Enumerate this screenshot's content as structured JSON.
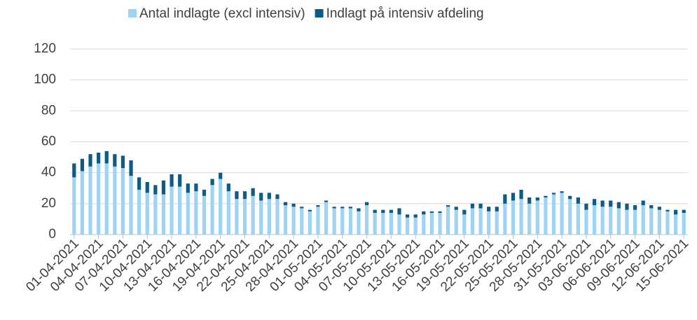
{
  "chart_data": {
    "type": "stacked-bar",
    "categories": [
      "01-04-2021",
      null,
      null,
      "04-04-2021",
      null,
      null,
      "07-04-2021",
      null,
      null,
      "10-04-2021",
      null,
      null,
      "13-04-2021",
      null,
      null,
      "16-04-2021",
      null,
      null,
      "19-04-2021",
      null,
      null,
      "22-04-2021",
      null,
      null,
      "25-04-2021",
      null,
      null,
      "28-04-2021",
      null,
      null,
      "01-05-2021",
      null,
      null,
      "04-05-2021",
      null,
      null,
      "07-05-2021",
      null,
      null,
      "10-05-2021",
      null,
      null,
      "13-05-2021",
      null,
      null,
      "16-05-2021",
      null,
      null,
      "19-05-2021",
      null,
      null,
      "22-05-2021",
      null,
      null,
      "25-05-2021",
      null,
      null,
      "28-05-2021",
      null,
      null,
      "31-05-2021",
      null,
      null,
      "03-06-2021",
      null,
      null,
      "06-06-2021",
      null,
      null,
      "09-06-2021",
      null,
      null,
      "12-06-2021",
      null,
      null,
      "15-06-2021"
    ],
    "series": [
      {
        "name": "Antal indlagte (excl intensiv)",
        "color": "#9fd3f4",
        "values": [
          37,
          41,
          44,
          46,
          46,
          44,
          43,
          38,
          29,
          27,
          26,
          26,
          31,
          31,
          27,
          28,
          25,
          32,
          36,
          28,
          23,
          23,
          25,
          22,
          23,
          23,
          19,
          18,
          17,
          15,
          18,
          21,
          17,
          17,
          17,
          15,
          19,
          14,
          14,
          14,
          13,
          11,
          11,
          13,
          14,
          14,
          18,
          16,
          13,
          17,
          17,
          15,
          15,
          20,
          22,
          23,
          20,
          22,
          24,
          26,
          27,
          23,
          20,
          16,
          19,
          18,
          18,
          17,
          16,
          16,
          19,
          17,
          16,
          15,
          13,
          14
        ]
      },
      {
        "name": "Indlagt på intensiv afdeling",
        "color": "#0d5c86",
        "values": [
          9,
          8,
          8,
          7,
          8,
          8,
          8,
          10,
          8,
          7,
          6,
          9,
          8,
          8,
          6,
          5,
          4,
          4,
          4,
          5,
          5,
          5,
          5,
          5,
          4,
          3,
          2,
          2,
          1,
          1,
          1,
          1,
          1,
          1,
          1,
          2,
          2,
          2,
          2,
          2,
          4,
          2,
          2,
          2,
          1,
          1,
          1,
          2,
          3,
          3,
          3,
          3,
          3,
          6,
          5,
          6,
          4,
          2,
          1,
          1,
          1,
          2,
          4,
          4,
          4,
          4,
          4,
          4,
          4,
          3,
          3,
          2,
          2,
          1,
          3,
          2
        ]
      }
    ],
    "ylim": [
      0,
      120
    ],
    "yticks": [
      0,
      20,
      40,
      60,
      80,
      100,
      120
    ],
    "grid": true,
    "legend": "top"
  }
}
